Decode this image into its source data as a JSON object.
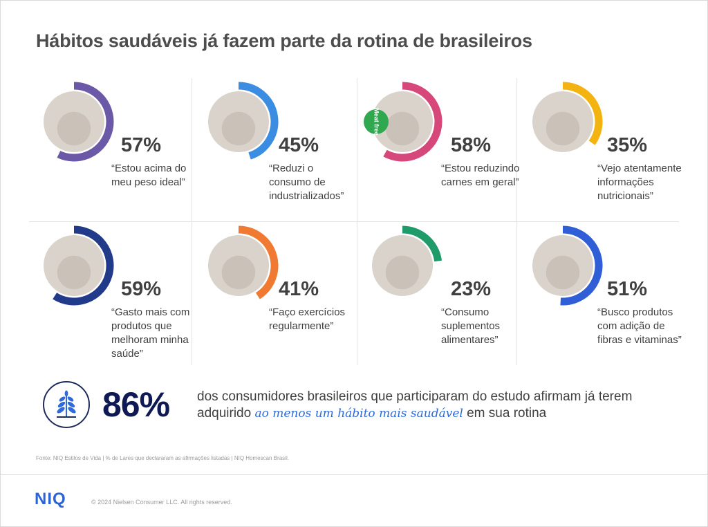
{
  "title": "Hábitos saudáveis já fazem parte da rotina de brasileiros",
  "chart_data": {
    "type": "pie",
    "items": [
      {
        "value": 57,
        "label": "57%",
        "quote": "“Estou acima do meu peso ideal”",
        "color": "#6b58a6",
        "badge": ""
      },
      {
        "value": 45,
        "label": "45%",
        "quote": "“Reduzi o consumo de industrializados”",
        "color": "#3a8de0",
        "badge": ""
      },
      {
        "value": 58,
        "label": "58%",
        "quote": "“Estou reduzindo carnes em geral”",
        "color": "#d6477a",
        "badge": "Meat free"
      },
      {
        "value": 35,
        "label": "35%",
        "quote": "“Vejo atentamente informações nutricionais”",
        "color": "#f3b310",
        "badge": ""
      },
      {
        "value": 59,
        "label": "59%",
        "quote": "“Gasto mais com produtos que melhoram minha saúde”",
        "color": "#223a8a",
        "badge": ""
      },
      {
        "value": 41,
        "label": "41%",
        "quote": "“Faço exercícios regularmente”",
        "color": "#f07a32",
        "badge": ""
      },
      {
        "value": 23,
        "label": "23%",
        "quote": "“Consumo suplementos alimentares”",
        "color": "#1f9b6a",
        "badge": ""
      },
      {
        "value": 51,
        "label": "51%",
        "quote": "“Busco produtos com adição de fibras e vitaminas”",
        "color": "#2f5ed6",
        "badge": ""
      }
    ]
  },
  "summary": {
    "value": "86%",
    "text_before": "dos consumidores brasileiros que participaram do estudo afirmam já terem adquirido ",
    "highlight": "ao menos um hábito mais saudável",
    "text_after": " em sua rotina",
    "icon": "plant-icon"
  },
  "source": "Fonte: NIQ Estilos de Vida | % de Lares que declararam as afirmações listadas | NIQ Homescan Brasil.",
  "logo": "NIQ",
  "copyright": "© 2024 Nielsen Consumer LLC. All rights reserved."
}
